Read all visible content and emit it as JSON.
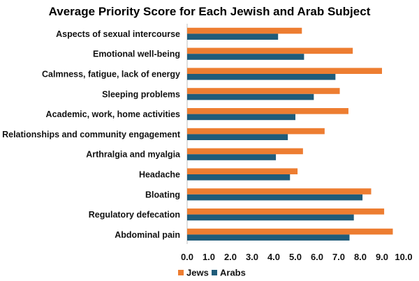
{
  "chart_data": {
    "type": "bar",
    "orientation": "horizontal",
    "title": "Average Priority Score for Each Jewish and Arab Subject",
    "categories": [
      "Aspects of sexual intercourse",
      "Emotional well-being",
      "Calmness, fatigue, lack of energy",
      "Sleeping problems",
      "Academic, work, home activities",
      "Relationships and community engagement",
      "Arthralgia and myalgia",
      "Headache",
      "Bloating",
      "Regulatory defecation",
      "Abdominal pain"
    ],
    "series": [
      {
        "name": "Jews",
        "color": "#ED7D31",
        "values": [
          5.3,
          7.65,
          9.0,
          7.05,
          7.45,
          6.35,
          5.35,
          5.1,
          8.5,
          9.1,
          9.5
        ]
      },
      {
        "name": "Arabs",
        "color": "#1F5C7A",
        "values": [
          4.2,
          5.4,
          6.85,
          5.85,
          5.0,
          4.65,
          4.1,
          4.75,
          8.1,
          7.7,
          7.5
        ]
      }
    ],
    "xlim": [
      0,
      10
    ],
    "xticks": [
      "0.0",
      "1.0",
      "2.0",
      "3.0",
      "4.0",
      "5.0",
      "6.0",
      "7.0",
      "8.0",
      "9.0",
      "10.0"
    ],
    "xlabel": "",
    "ylabel": "",
    "legend_position": "bottom-left",
    "grid": false
  }
}
